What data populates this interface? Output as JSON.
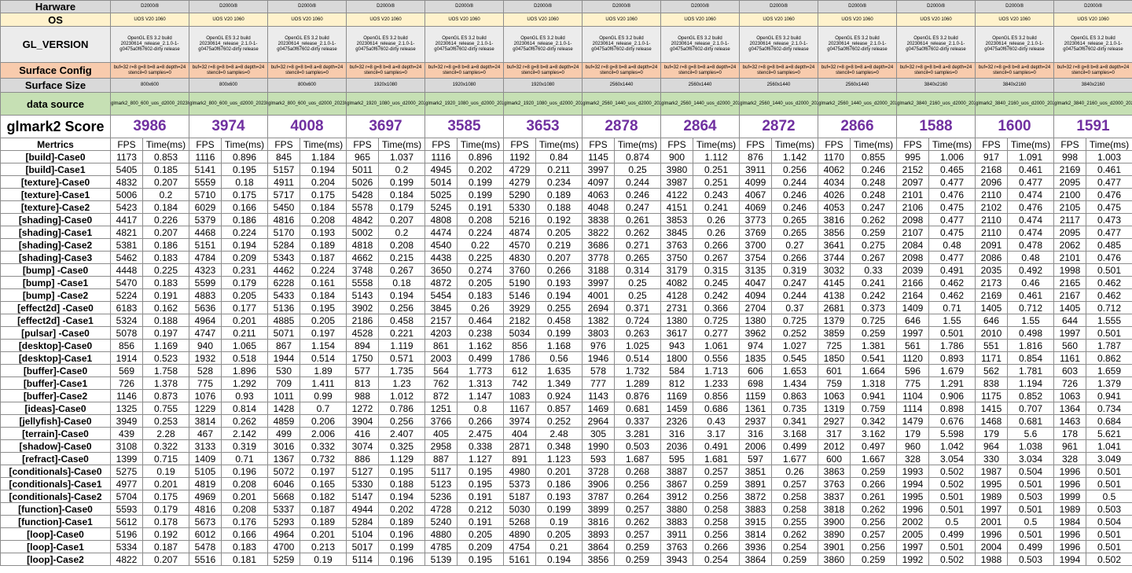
{
  "labels": {
    "hardware": "Harware",
    "os": "OS",
    "gl_version": "GL_VERSION",
    "surface_config": "Surface Config",
    "surface_size": "Surface Size",
    "data_source": "data source",
    "score": "glmark2 Score",
    "metrics": "Mertrics",
    "fps": "FPS",
    "time": "Time(ms)"
  },
  "hardware": "D2000/8",
  "os": "UOS V20 1060",
  "gl_version": "OpenGL ES 3.2 build 20230614_release_2.1.0-1-g0475a0f67602-dirty release",
  "surface_config": "buf=32 r=8 g=8 b=8 a=8 depth=24 stencil=0 samples=0",
  "columns": [
    {
      "size": "800x600",
      "source": "glmark2_800_600_uos_d2000_20230816148.txt",
      "score": "3986"
    },
    {
      "size": "800x600",
      "source": "glmark2_800_600_uos_d2000_20230816148.txt",
      "score": "3974"
    },
    {
      "size": "800x600",
      "source": "glmark2_800_600_uos_d2000_20230816150.txt",
      "score": "4008"
    },
    {
      "size": "1920x1080",
      "source": "glmark2_1920_1080_uos_d2000_20230816402.txt",
      "score": "3697"
    },
    {
      "size": "1920x1080",
      "source": "glmark2_1920_1080_uos_d2000_20230816514.txt",
      "score": "3585"
    },
    {
      "size": "1920x1080",
      "source": "glmark2_1920_1080_uos_d2000_20230816555.txt",
      "score": "3653"
    },
    {
      "size": "2560x1440",
      "source": "glmark2_2560_1440_uos_d2000_20230816409.txt",
      "score": "2878"
    },
    {
      "size": "2560x1440",
      "source": "glmark2_2560_1440_uos_d2000_20230816416.txt",
      "score": "2864"
    },
    {
      "size": "2560x1440",
      "source": "glmark2_2560_1440_uos_d2000_20230816422.txt",
      "score": "2872"
    },
    {
      "size": "2560x1440",
      "source": "glmark2_2560_1440_uos_d2000_20230816428.txt",
      "score": "2866"
    },
    {
      "size": "3840x2160",
      "source": "glmark2_3840_2160_uos_d2000_20230816713.txt",
      "score": "1588"
    },
    {
      "size": "3840x2160",
      "source": "glmark2_3840_2160_uos_d2000_20230816720.txt",
      "score": "1600"
    },
    {
      "size": "3840x2160",
      "source": "glmark2_3840_2160_uos_d2000_20230816727.txt",
      "score": "1591"
    }
  ],
  "rows": [
    {
      "name": "[build]-Case0",
      "v": [
        "1173",
        "0.853",
        "1116",
        "0.896",
        "845",
        "1.184",
        "965",
        "1.037",
        "1116",
        "0.896",
        "1192",
        "0.84",
        "1145",
        "0.874",
        "900",
        "1.112",
        "876",
        "1.142",
        "1170",
        "0.855",
        "995",
        "1.006",
        "917",
        "1.091",
        "998",
        "1.003"
      ]
    },
    {
      "name": "[build]-Case1",
      "v": [
        "5405",
        "0.185",
        "5141",
        "0.195",
        "5157",
        "0.194",
        "5011",
        "0.2",
        "4945",
        "0.202",
        "4729",
        "0.211",
        "3997",
        "0.25",
        "3980",
        "0.251",
        "3911",
        "0.256",
        "4062",
        "0.246",
        "2152",
        "0.465",
        "2168",
        "0.461",
        "2169",
        "0.461"
      ]
    },
    {
      "name": "[texture]-Case0",
      "v": [
        "4832",
        "0.207",
        "5559",
        "0.18",
        "4911",
        "0.204",
        "5026",
        "0.199",
        "5014",
        "0.199",
        "4279",
        "0.234",
        "4097",
        "0.244",
        "3987",
        "0.251",
        "4099",
        "0.244",
        "4034",
        "0.248",
        "2097",
        "0.477",
        "2096",
        "0.477",
        "2095",
        "0.477"
      ]
    },
    {
      "name": "[texture]-Case1",
      "v": [
        "5006",
        "0.2",
        "5710",
        "0.175",
        "5717",
        "0.175",
        "5428",
        "0.184",
        "5025",
        "0.199",
        "5290",
        "0.189",
        "4063",
        "0.246",
        "4122",
        "0.243",
        "4067",
        "0.246",
        "4026",
        "0.248",
        "2101",
        "0.476",
        "2110",
        "0.474",
        "2100",
        "0.476"
      ]
    },
    {
      "name": "[texture]-Case2",
      "v": [
        "5423",
        "0.184",
        "6029",
        "0.166",
        "5450",
        "0.184",
        "5578",
        "0.179",
        "5245",
        "0.191",
        "5330",
        "0.188",
        "4048",
        "0.247",
        "4151",
        "0.241",
        "4069",
        "0.246",
        "4053",
        "0.247",
        "2106",
        "0.475",
        "2102",
        "0.476",
        "2105",
        "0.475"
      ]
    },
    {
      "name": "[shading]-Case0",
      "v": [
        "4417",
        "0.226",
        "5379",
        "0.186",
        "4816",
        "0.208",
        "4842",
        "0.207",
        "4808",
        "0.208",
        "5216",
        "0.192",
        "3838",
        "0.261",
        "3853",
        "0.26",
        "3773",
        "0.265",
        "3816",
        "0.262",
        "2098",
        "0.477",
        "2110",
        "0.474",
        "2117",
        "0.473"
      ]
    },
    {
      "name": "[shading]-Case1",
      "v": [
        "4821",
        "0.207",
        "4468",
        "0.224",
        "5170",
        "0.193",
        "5002",
        "0.2",
        "4474",
        "0.224",
        "4874",
        "0.205",
        "3822",
        "0.262",
        "3845",
        "0.26",
        "3769",
        "0.265",
        "3856",
        "0.259",
        "2107",
        "0.475",
        "2110",
        "0.474",
        "2095",
        "0.477"
      ]
    },
    {
      "name": "[shading]-Case2",
      "v": [
        "5381",
        "0.186",
        "5151",
        "0.194",
        "5284",
        "0.189",
        "4818",
        "0.208",
        "4540",
        "0.22",
        "4570",
        "0.219",
        "3686",
        "0.271",
        "3763",
        "0.266",
        "3700",
        "0.27",
        "3641",
        "0.275",
        "2084",
        "0.48",
        "2091",
        "0.478",
        "2062",
        "0.485"
      ]
    },
    {
      "name": "[shading]-Case3",
      "v": [
        "5462",
        "0.183",
        "4784",
        "0.209",
        "5343",
        "0.187",
        "4662",
        "0.215",
        "4438",
        "0.225",
        "4830",
        "0.207",
        "3778",
        "0.265",
        "3750",
        "0.267",
        "3754",
        "0.266",
        "3744",
        "0.267",
        "2098",
        "0.477",
        "2086",
        "0.48",
        "2101",
        "0.476"
      ]
    },
    {
      "name": "[bump] -Case0",
      "v": [
        "4448",
        "0.225",
        "4323",
        "0.231",
        "4462",
        "0.224",
        "3748",
        "0.267",
        "3650",
        "0.274",
        "3760",
        "0.266",
        "3188",
        "0.314",
        "3179",
        "0.315",
        "3135",
        "0.319",
        "3032",
        "0.33",
        "2039",
        "0.491",
        "2035",
        "0.492",
        "1998",
        "0.501"
      ]
    },
    {
      "name": "[bump] -Case1",
      "v": [
        "5470",
        "0.183",
        "5599",
        "0.179",
        "6228",
        "0.161",
        "5558",
        "0.18",
        "4872",
        "0.205",
        "5190",
        "0.193",
        "3997",
        "0.25",
        "4082",
        "0.245",
        "4047",
        "0.247",
        "4145",
        "0.241",
        "2166",
        "0.462",
        "2173",
        "0.46",
        "2165",
        "0.462"
      ]
    },
    {
      "name": "[bump] -Case2",
      "v": [
        "5224",
        "0.191",
        "4883",
        "0.205",
        "5433",
        "0.184",
        "5143",
        "0.194",
        "5454",
        "0.183",
        "5146",
        "0.194",
        "4001",
        "0.25",
        "4128",
        "0.242",
        "4094",
        "0.244",
        "4138",
        "0.242",
        "2164",
        "0.462",
        "2169",
        "0.461",
        "2167",
        "0.462"
      ]
    },
    {
      "name": "[effect2d] -Case0",
      "v": [
        "6183",
        "0.162",
        "5636",
        "0.177",
        "5136",
        "0.195",
        "3902",
        "0.256",
        "3845",
        "0.26",
        "3929",
        "0.255",
        "2694",
        "0.371",
        "2731",
        "0.366",
        "2704",
        "0.37",
        "2681",
        "0.373",
        "1409",
        "0.71",
        "1405",
        "0.712",
        "1405",
        "0.712"
      ]
    },
    {
      "name": "[effect2d] -Case1",
      "v": [
        "5324",
        "0.188",
        "4964",
        "0.201",
        "4885",
        "0.205",
        "2186",
        "0.458",
        "2157",
        "0.464",
        "2182",
        "0.458",
        "1382",
        "0.724",
        "1380",
        "0.725",
        "1380",
        "0.725",
        "1379",
        "0.725",
        "646",
        "1.55",
        "646",
        "1.55",
        "644",
        "1.555"
      ]
    },
    {
      "name": "[pulsar] -Case0",
      "v": [
        "5078",
        "0.197",
        "4747",
        "0.211",
        "5071",
        "0.197",
        "4528",
        "0.221",
        "4203",
        "0.238",
        "5034",
        "0.199",
        "3803",
        "0.263",
        "3617",
        "0.277",
        "3962",
        "0.252",
        "3859",
        "0.259",
        "1997",
        "0.501",
        "2010",
        "0.498",
        "1997",
        "0.501"
      ]
    },
    {
      "name": "[desktop]-Case0",
      "v": [
        "856",
        "1.169",
        "940",
        "1.065",
        "867",
        "1.154",
        "894",
        "1.119",
        "861",
        "1.162",
        "856",
        "1.168",
        "976",
        "1.025",
        "943",
        "1.061",
        "974",
        "1.027",
        "725",
        "1.381",
        "561",
        "1.786",
        "551",
        "1.816",
        "560",
        "1.787"
      ]
    },
    {
      "name": "[desktop]-Case1",
      "v": [
        "1914",
        "0.523",
        "1932",
        "0.518",
        "1944",
        "0.514",
        "1750",
        "0.571",
        "2003",
        "0.499",
        "1786",
        "0.56",
        "1946",
        "0.514",
        "1800",
        "0.556",
        "1835",
        "0.545",
        "1850",
        "0.541",
        "1120",
        "0.893",
        "1171",
        "0.854",
        "1161",
        "0.862"
      ]
    },
    {
      "name": "[buffer]-Case0",
      "v": [
        "569",
        "1.758",
        "528",
        "1.896",
        "530",
        "1.89",
        "577",
        "1.735",
        "564",
        "1.773",
        "612",
        "1.635",
        "578",
        "1.732",
        "584",
        "1.713",
        "606",
        "1.653",
        "601",
        "1.664",
        "596",
        "1.679",
        "562",
        "1.781",
        "603",
        "1.659"
      ]
    },
    {
      "name": "[buffer]-Case1",
      "v": [
        "726",
        "1.378",
        "775",
        "1.292",
        "709",
        "1.411",
        "813",
        "1.23",
        "762",
        "1.313",
        "742",
        "1.349",
        "777",
        "1.289",
        "812",
        "1.233",
        "698",
        "1.434",
        "759",
        "1.318",
        "775",
        "1.291",
        "838",
        "1.194",
        "726",
        "1.379"
      ]
    },
    {
      "name": "[buffer]-Case2",
      "v": [
        "1146",
        "0.873",
        "1076",
        "0.93",
        "1011",
        "0.99",
        "988",
        "1.012",
        "872",
        "1.147",
        "1083",
        "0.924",
        "1143",
        "0.876",
        "1169",
        "0.856",
        "1159",
        "0.863",
        "1063",
        "0.941",
        "1104",
        "0.906",
        "1175",
        "0.852",
        "1063",
        "0.941"
      ]
    },
    {
      "name": "[ideas]-Case0",
      "v": [
        "1325",
        "0.755",
        "1229",
        "0.814",
        "1428",
        "0.7",
        "1272",
        "0.786",
        "1251",
        "0.8",
        "1167",
        "0.857",
        "1469",
        "0.681",
        "1459",
        "0.686",
        "1361",
        "0.735",
        "1319",
        "0.759",
        "1114",
        "0.898",
        "1415",
        "0.707",
        "1364",
        "0.734"
      ]
    },
    {
      "name": "[jellyfish]-Case0",
      "v": [
        "3949",
        "0.253",
        "3814",
        "0.262",
        "4859",
        "0.206",
        "3904",
        "0.256",
        "3766",
        "0.266",
        "3974",
        "0.252",
        "2964",
        "0.337",
        "2326",
        "0.43",
        "2937",
        "0.341",
        "2927",
        "0.342",
        "1479",
        "0.676",
        "1468",
        "0.681",
        "1463",
        "0.684"
      ]
    },
    {
      "name": "[terrain]-Case0",
      "v": [
        "439",
        "2.28",
        "467",
        "2.142",
        "499",
        "2.006",
        "416",
        "2.407",
        "405",
        "2.475",
        "404",
        "2.48",
        "305",
        "3.281",
        "316",
        "3.17",
        "316",
        "3.168",
        "317",
        "3.162",
        "179",
        "5.598",
        "179",
        "5.6",
        "178",
        "5.621"
      ]
    },
    {
      "name": "[shadow]-Case0",
      "v": [
        "3108",
        "0.322",
        "3133",
        "0.319",
        "3016",
        "0.332",
        "3074",
        "0.325",
        "2958",
        "0.338",
        "2871",
        "0.348",
        "1990",
        "0.503",
        "2036",
        "0.491",
        "2006",
        "0.499",
        "2012",
        "0.497",
        "960",
        "1.042",
        "964",
        "1.038",
        "961",
        "1.041"
      ]
    },
    {
      "name": "[refract]-Case0",
      "v": [
        "1399",
        "0.715",
        "1409",
        "0.71",
        "1367",
        "0.732",
        "886",
        "1.129",
        "887",
        "1.127",
        "891",
        "1.123",
        "593",
        "1.687",
        "595",
        "1.681",
        "597",
        "1.677",
        "600",
        "1.667",
        "328",
        "3.054",
        "330",
        "3.034",
        "328",
        "3.049"
      ]
    },
    {
      "name": "[conditionals]-Case0",
      "v": [
        "5275",
        "0.19",
        "5105",
        "0.196",
        "5072",
        "0.197",
        "5127",
        "0.195",
        "5117",
        "0.195",
        "4980",
        "0.201",
        "3728",
        "0.268",
        "3887",
        "0.257",
        "3851",
        "0.26",
        "3863",
        "0.259",
        "1993",
        "0.502",
        "1987",
        "0.504",
        "1996",
        "0.501"
      ]
    },
    {
      "name": "[conditionals]-Case1",
      "v": [
        "4977",
        "0.201",
        "4819",
        "0.208",
        "6046",
        "0.165",
        "5330",
        "0.188",
        "5123",
        "0.195",
        "5373",
        "0.186",
        "3906",
        "0.256",
        "3867",
        "0.259",
        "3891",
        "0.257",
        "3763",
        "0.266",
        "1994",
        "0.502",
        "1995",
        "0.501",
        "1996",
        "0.501"
      ]
    },
    {
      "name": "[conditionals]-Case2",
      "v": [
        "5704",
        "0.175",
        "4969",
        "0.201",
        "5668",
        "0.182",
        "5147",
        "0.194",
        "5236",
        "0.191",
        "5187",
        "0.193",
        "3787",
        "0.264",
        "3912",
        "0.256",
        "3872",
        "0.258",
        "3837",
        "0.261",
        "1995",
        "0.501",
        "1989",
        "0.503",
        "1999",
        "0.5"
      ]
    },
    {
      "name": "[function]-Case0",
      "v": [
        "5593",
        "0.179",
        "4816",
        "0.208",
        "5337",
        "0.187",
        "4944",
        "0.202",
        "4728",
        "0.212",
        "5030",
        "0.199",
        "3899",
        "0.257",
        "3880",
        "0.258",
        "3883",
        "0.258",
        "3818",
        "0.262",
        "1996",
        "0.501",
        "1997",
        "0.501",
        "1989",
        "0.503"
      ]
    },
    {
      "name": "[function]-Case1",
      "v": [
        "5612",
        "0.178",
        "5673",
        "0.176",
        "5293",
        "0.189",
        "5284",
        "0.189",
        "5240",
        "0.191",
        "5268",
        "0.19",
        "3816",
        "0.262",
        "3883",
        "0.258",
        "3915",
        "0.255",
        "3900",
        "0.256",
        "2002",
        "0.5",
        "2001",
        "0.5",
        "1984",
        "0.504"
      ]
    },
    {
      "name": "[loop]-Case0",
      "v": [
        "5196",
        "0.192",
        "6012",
        "0.166",
        "4964",
        "0.201",
        "5104",
        "0.196",
        "4880",
        "0.205",
        "4890",
        "0.205",
        "3893",
        "0.257",
        "3911",
        "0.256",
        "3814",
        "0.262",
        "3890",
        "0.257",
        "2005",
        "0.499",
        "1996",
        "0.501",
        "1996",
        "0.501"
      ]
    },
    {
      "name": "[loop]-Case1",
      "v": [
        "5334",
        "0.187",
        "5478",
        "0.183",
        "4700",
        "0.213",
        "5017",
        "0.199",
        "4785",
        "0.209",
        "4754",
        "0.21",
        "3864",
        "0.259",
        "3763",
        "0.266",
        "3936",
        "0.254",
        "3901",
        "0.256",
        "1997",
        "0.501",
        "2004",
        "0.499",
        "1996",
        "0.501"
      ]
    },
    {
      "name": "[loop]-Case2",
      "v": [
        "4822",
        "0.207",
        "5516",
        "0.181",
        "5259",
        "0.19",
        "5114",
        "0.196",
        "5139",
        "0.195",
        "5161",
        "0.194",
        "3856",
        "0.259",
        "3943",
        "0.254",
        "3864",
        "0.259",
        "3860",
        "0.259",
        "1992",
        "0.502",
        "1988",
        "0.503",
        "1994",
        "0.502"
      ]
    }
  ]
}
